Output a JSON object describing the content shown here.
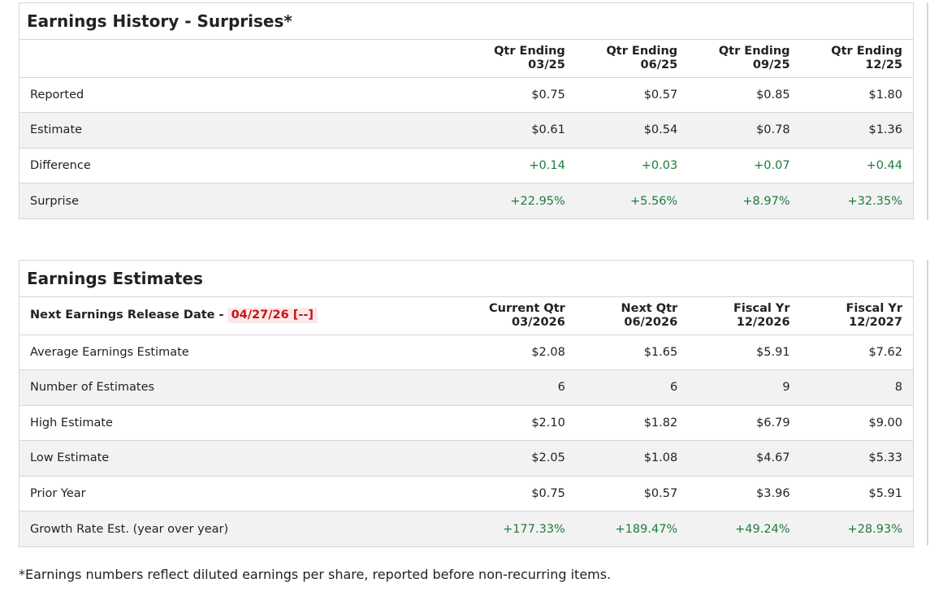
{
  "history": {
    "title": "Earnings History - Surprises*",
    "columns": [
      {
        "line1": "Qtr Ending",
        "line2": "03/25"
      },
      {
        "line1": "Qtr Ending",
        "line2": "06/25"
      },
      {
        "line1": "Qtr Ending",
        "line2": "09/25"
      },
      {
        "line1": "Qtr Ending",
        "line2": "12/25"
      }
    ],
    "rows": [
      {
        "label": "Reported",
        "values": [
          "$0.75",
          "$0.57",
          "$0.85",
          "$1.80"
        ]
      },
      {
        "label": "Estimate",
        "values": [
          "$0.61",
          "$0.54",
          "$0.78",
          "$1.36"
        ]
      },
      {
        "label": "Difference",
        "values": [
          "+0.14",
          "+0.03",
          "+0.07",
          "+0.44"
        ]
      },
      {
        "label": "Surprise",
        "values": [
          "+22.95%",
          "+5.56%",
          "+8.97%",
          "+32.35%"
        ]
      }
    ]
  },
  "estimates": {
    "title": "Earnings Estimates",
    "release_label": "Next Earnings Release Date -",
    "release_date": "04/27/26 [--]",
    "columns": [
      {
        "line1": "Current Qtr",
        "line2": "03/2026"
      },
      {
        "line1": "Next Qtr",
        "line2": "06/2026"
      },
      {
        "line1": "Fiscal Yr",
        "line2": "12/2026"
      },
      {
        "line1": "Fiscal Yr",
        "line2": "12/2027"
      }
    ],
    "rows": [
      {
        "label": "Average Earnings Estimate",
        "values": [
          "$2.08",
          "$1.65",
          "$5.91",
          "$7.62"
        ]
      },
      {
        "label": "Number of Estimates",
        "values": [
          "6",
          "6",
          "9",
          "8"
        ]
      },
      {
        "label": "High Estimate",
        "values": [
          "$2.10",
          "$1.82",
          "$6.79",
          "$9.00"
        ]
      },
      {
        "label": "Low Estimate",
        "values": [
          "$2.05",
          "$1.08",
          "$4.67",
          "$5.33"
        ]
      },
      {
        "label": "Prior Year",
        "values": [
          "$0.75",
          "$0.57",
          "$3.96",
          "$5.91"
        ]
      },
      {
        "label": "Growth Rate Est. (year over year)",
        "values": [
          "+177.33%",
          "+189.47%",
          "+49.24%",
          "+28.93%"
        ]
      }
    ]
  },
  "footnote": "*Earnings numbers reflect diluted earnings per share, reported before non-recurring items.",
  "colors": {
    "positive": "#1e7a3c",
    "release_date_text": "#c0161a",
    "release_date_bg": "#fde8e8",
    "alt_row_bg": "#f2f2f2",
    "border": "#d6d6d6"
  }
}
